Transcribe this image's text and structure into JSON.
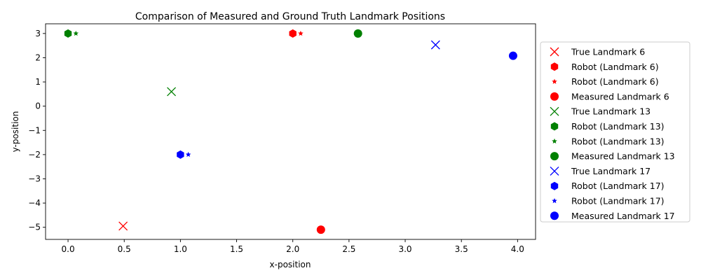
{
  "chart_data": {
    "type": "scatter",
    "title": "Comparison of Measured and Ground Truth Landmark Positions",
    "xlabel": "x-position",
    "ylabel": "y-position",
    "xlim": [
      -0.2,
      4.16
    ],
    "ylim": [
      -5.5,
      3.4
    ],
    "xticks": [
      0.0,
      0.5,
      1.0,
      1.5,
      2.0,
      2.5,
      3.0,
      3.5,
      4.0
    ],
    "xtick_labels": [
      "0.0",
      "0.5",
      "1.0",
      "1.5",
      "2.0",
      "2.5",
      "3.0",
      "3.5",
      "4.0"
    ],
    "yticks": [
      3,
      2,
      1,
      0,
      -1,
      -2,
      -3,
      -4,
      -5
    ],
    "ytick_labels": [
      "3",
      "2",
      "1",
      "0",
      "−1",
      "−2",
      "−3",
      "−4",
      "−5"
    ],
    "grid": false,
    "legend_position": "outside-right",
    "series": [
      {
        "name": "True Landmark 6",
        "marker": "x",
        "color": "#ff0000",
        "x": [
          0.49
        ],
        "y": [
          -4.95
        ]
      },
      {
        "name": "Robot (Landmark 6)",
        "marker": "hexagon",
        "color": "#ff0000",
        "x": [
          2.0
        ],
        "y": [
          3.0
        ]
      },
      {
        "name": "Robot (Landmark 6)",
        "marker": "star",
        "color": "#ff0000",
        "x": [
          2.07
        ],
        "y": [
          3.0
        ]
      },
      {
        "name": "Measured Landmark 6",
        "marker": "circle",
        "color": "#ff0000",
        "x": [
          2.25
        ],
        "y": [
          -5.1
        ]
      },
      {
        "name": "True Landmark 13",
        "marker": "x",
        "color": "#008000",
        "x": [
          0.92
        ],
        "y": [
          0.6
        ]
      },
      {
        "name": "Robot (Landmark 13)",
        "marker": "hexagon",
        "color": "#008000",
        "x": [
          0.0
        ],
        "y": [
          3.0
        ]
      },
      {
        "name": "Robot (Landmark 13)",
        "marker": "star",
        "color": "#008000",
        "x": [
          0.07
        ],
        "y": [
          3.0
        ]
      },
      {
        "name": "Measured Landmark 13",
        "marker": "circle",
        "color": "#008000",
        "x": [
          2.58
        ],
        "y": [
          3.0
        ]
      },
      {
        "name": "True Landmark 17",
        "marker": "x",
        "color": "#0000ff",
        "x": [
          3.27
        ],
        "y": [
          2.53
        ]
      },
      {
        "name": "Robot (Landmark 17)",
        "marker": "hexagon",
        "color": "#0000ff",
        "x": [
          1.0
        ],
        "y": [
          -2.0
        ]
      },
      {
        "name": "Robot (Landmark 17)",
        "marker": "star",
        "color": "#0000ff",
        "x": [
          1.07
        ],
        "y": [
          -2.0
        ]
      },
      {
        "name": "Measured Landmark 17",
        "marker": "circle",
        "color": "#0000ff",
        "x": [
          3.96
        ],
        "y": [
          2.08
        ]
      }
    ]
  }
}
